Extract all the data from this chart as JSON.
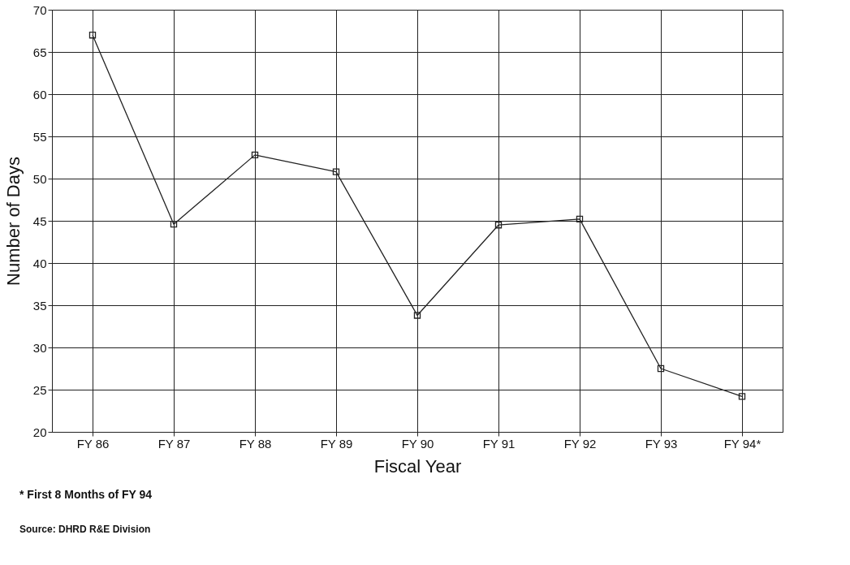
{
  "chart_data": {
    "type": "line",
    "xlabel": "Fiscal Year",
    "ylabel": "Number of Days",
    "categories": [
      "FY 86",
      "FY 87",
      "FY 88",
      "FY 89",
      "FY 90",
      "FY 91",
      "FY 92",
      "FY 93",
      "FY 94*"
    ],
    "series": [
      {
        "color": "#222222",
        "values": [
          67.0,
          44.6,
          52.8,
          50.8,
          33.8,
          44.5,
          45.2,
          27.5,
          24.2
        ]
      }
    ],
    "ylim": [
      20,
      70
    ],
    "yticks": [
      20,
      25,
      30,
      35,
      40,
      45,
      50,
      55,
      60,
      65,
      70
    ],
    "grid": true,
    "marker": "square",
    "line_style": "solid",
    "annotations": [
      "* First 8 Months of FY 94",
      "Source: DHRD R&E Division"
    ]
  }
}
